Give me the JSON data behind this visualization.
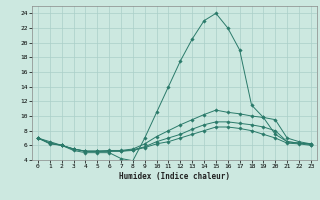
{
  "xlabel": "Humidex (Indice chaleur)",
  "background_color": "#cce8e0",
  "grid_color": "#aacfc8",
  "line_color": "#2a7a6a",
  "xlim": [
    -0.5,
    23.5
  ],
  "ylim": [
    4,
    25
  ],
  "yticks": [
    4,
    6,
    8,
    10,
    12,
    14,
    16,
    18,
    20,
    22,
    24
  ],
  "xticks": [
    0,
    1,
    2,
    3,
    4,
    5,
    6,
    7,
    8,
    9,
    10,
    11,
    12,
    13,
    14,
    15,
    16,
    17,
    18,
    19,
    20,
    21,
    22,
    23
  ],
  "series": [
    {
      "x": [
        0,
        1,
        2,
        3,
        4,
        5,
        6,
        7,
        8,
        9,
        10,
        11,
        12,
        13,
        14,
        15,
        16,
        17,
        18,
        19,
        20,
        21,
        22,
        23
      ],
      "y": [
        7,
        6.3,
        6,
        5.3,
        5.0,
        5.0,
        5.0,
        4.2,
        3.9,
        7.0,
        10.5,
        14,
        17.5,
        20.5,
        23,
        24,
        22,
        19,
        11.5,
        9.8,
        7.5,
        6.5,
        6.3,
        6.2
      ]
    },
    {
      "x": [
        0,
        1,
        2,
        3,
        4,
        5,
        6,
        7,
        8,
        9,
        10,
        11,
        12,
        13,
        14,
        15,
        16,
        17,
        18,
        19,
        20,
        21,
        22,
        23
      ],
      "y": [
        7,
        6.5,
        6,
        5.5,
        5.2,
        5.2,
        5.3,
        5.3,
        5.5,
        6.2,
        7.2,
        8.0,
        8.8,
        9.5,
        10.2,
        10.8,
        10.5,
        10.3,
        10.0,
        9.8,
        9.5,
        7.0,
        6.5,
        6.2
      ]
    },
    {
      "x": [
        0,
        1,
        2,
        3,
        4,
        5,
        6,
        7,
        8,
        9,
        10,
        11,
        12,
        13,
        14,
        15,
        16,
        17,
        18,
        19,
        20,
        21,
        22,
        23
      ],
      "y": [
        7,
        6.3,
        6,
        5.5,
        5.2,
        5.2,
        5.2,
        5.2,
        5.4,
        5.8,
        6.5,
        7.0,
        7.5,
        8.2,
        8.8,
        9.2,
        9.2,
        9.0,
        8.8,
        8.5,
        8.0,
        6.5,
        6.3,
        6.1
      ]
    },
    {
      "x": [
        0,
        1,
        2,
        3,
        4,
        5,
        6,
        7,
        8,
        9,
        10,
        11,
        12,
        13,
        14,
        15,
        16,
        17,
        18,
        19,
        20,
        21,
        22,
        23
      ],
      "y": [
        7,
        6.2,
        6,
        5.5,
        5.2,
        5.2,
        5.2,
        5.2,
        5.3,
        5.7,
        6.2,
        6.5,
        7.0,
        7.5,
        8.0,
        8.5,
        8.5,
        8.3,
        8.0,
        7.5,
        7.0,
        6.3,
        6.2,
        6.0
      ]
    }
  ]
}
